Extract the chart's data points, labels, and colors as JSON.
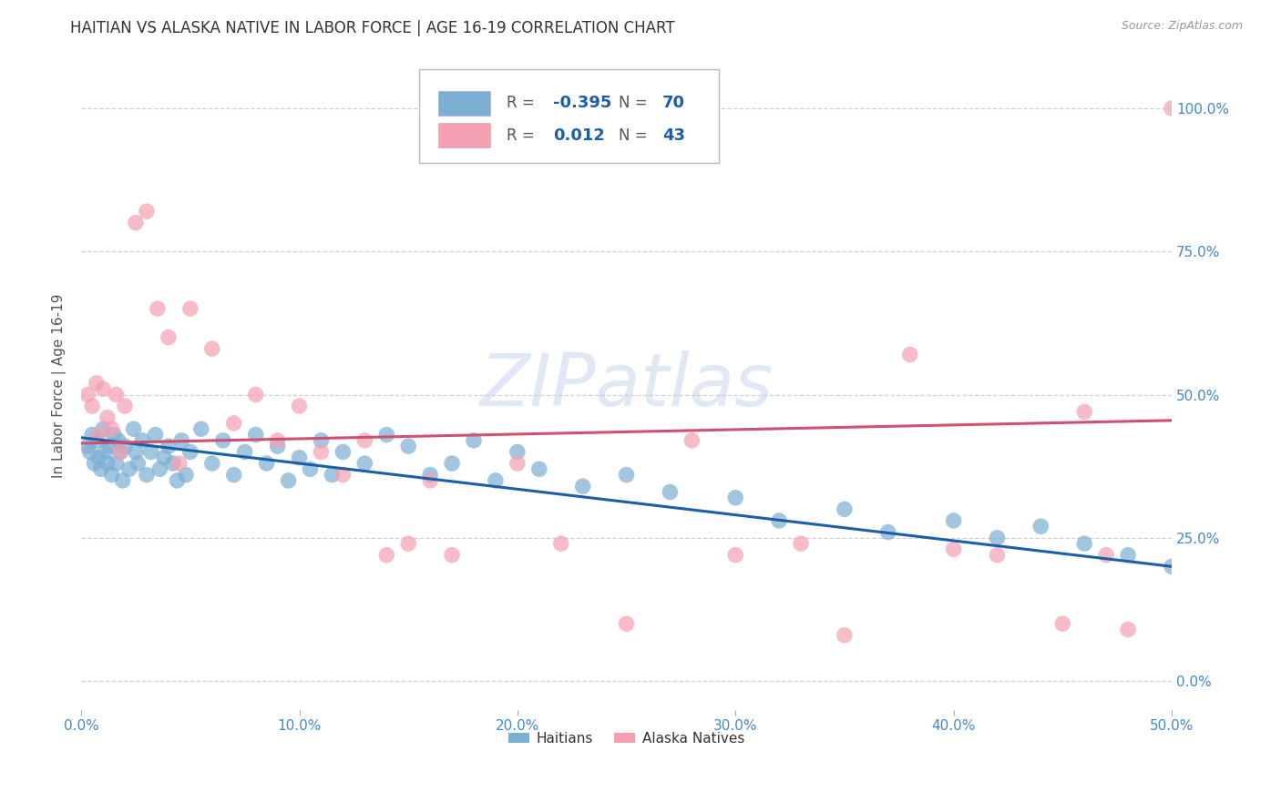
{
  "title": "HAITIAN VS ALASKA NATIVE IN LABOR FORCE | AGE 16-19 CORRELATION CHART",
  "source": "Source: ZipAtlas.com",
  "xmin": 0.0,
  "xmax": 0.5,
  "ymin": -0.05,
  "ymax": 1.08,
  "haitian_R": -0.395,
  "haitian_N": 70,
  "alaska_R": 0.012,
  "alaska_N": 43,
  "haitian_color": "#7bafd4",
  "alaska_color": "#f4a0b0",
  "haitian_line_color": "#1a5fa8",
  "alaska_line_color": "#d05070",
  "legend_haitian_label": "Haitians",
  "legend_alaska_label": "Alaska Natives",
  "watermark": "ZIPatlas",
  "background_color": "#ffffff",
  "grid_color": "#cccccc",
  "tick_label_color": "#4488cc",
  "title_color": "#333333",
  "haitian_x": [
    0.003,
    0.004,
    0.005,
    0.006,
    0.007,
    0.008,
    0.009,
    0.01,
    0.011,
    0.012,
    0.013,
    0.014,
    0.015,
    0.016,
    0.017,
    0.018,
    0.019,
    0.02,
    0.022,
    0.024,
    0.025,
    0.026,
    0.028,
    0.03,
    0.032,
    0.034,
    0.036,
    0.038,
    0.04,
    0.042,
    0.044,
    0.046,
    0.048,
    0.05,
    0.055,
    0.06,
    0.065,
    0.07,
    0.075,
    0.08,
    0.085,
    0.09,
    0.095,
    0.1,
    0.105,
    0.11,
    0.115,
    0.12,
    0.13,
    0.14,
    0.15,
    0.16,
    0.17,
    0.18,
    0.19,
    0.2,
    0.21,
    0.23,
    0.25,
    0.27,
    0.3,
    0.32,
    0.35,
    0.37,
    0.4,
    0.42,
    0.44,
    0.46,
    0.48,
    0.5
  ],
  "haitian_y": [
    0.41,
    0.4,
    0.43,
    0.38,
    0.42,
    0.39,
    0.37,
    0.44,
    0.4,
    0.38,
    0.41,
    0.36,
    0.43,
    0.38,
    0.42,
    0.4,
    0.35,
    0.41,
    0.37,
    0.44,
    0.4,
    0.38,
    0.42,
    0.36,
    0.4,
    0.43,
    0.37,
    0.39,
    0.41,
    0.38,
    0.35,
    0.42,
    0.36,
    0.4,
    0.44,
    0.38,
    0.42,
    0.36,
    0.4,
    0.43,
    0.38,
    0.41,
    0.35,
    0.39,
    0.37,
    0.42,
    0.36,
    0.4,
    0.38,
    0.43,
    0.41,
    0.36,
    0.38,
    0.42,
    0.35,
    0.4,
    0.37,
    0.34,
    0.36,
    0.33,
    0.32,
    0.28,
    0.3,
    0.26,
    0.28,
    0.25,
    0.27,
    0.24,
    0.22,
    0.2
  ],
  "alaska_x": [
    0.003,
    0.005,
    0.007,
    0.008,
    0.01,
    0.012,
    0.014,
    0.016,
    0.018,
    0.02,
    0.025,
    0.03,
    0.035,
    0.04,
    0.045,
    0.05,
    0.06,
    0.07,
    0.08,
    0.09,
    0.1,
    0.11,
    0.12,
    0.13,
    0.14,
    0.15,
    0.16,
    0.17,
    0.2,
    0.22,
    0.25,
    0.28,
    0.3,
    0.33,
    0.35,
    0.38,
    0.4,
    0.42,
    0.45,
    0.46,
    0.47,
    0.48,
    0.5
  ],
  "alaska_y": [
    0.5,
    0.48,
    0.52,
    0.43,
    0.51,
    0.46,
    0.44,
    0.5,
    0.4,
    0.48,
    0.8,
    0.82,
    0.65,
    0.6,
    0.38,
    0.65,
    0.58,
    0.45,
    0.5,
    0.42,
    0.48,
    0.4,
    0.36,
    0.42,
    0.22,
    0.24,
    0.35,
    0.22,
    0.38,
    0.24,
    0.1,
    0.42,
    0.22,
    0.24,
    0.08,
    0.57,
    0.23,
    0.22,
    0.1,
    0.47,
    0.22,
    0.09,
    1.0
  ],
  "haitian_line_start_y": 0.425,
  "haitian_line_end_y": 0.2,
  "alaska_line_start_y": 0.415,
  "alaska_line_end_y": 0.455
}
